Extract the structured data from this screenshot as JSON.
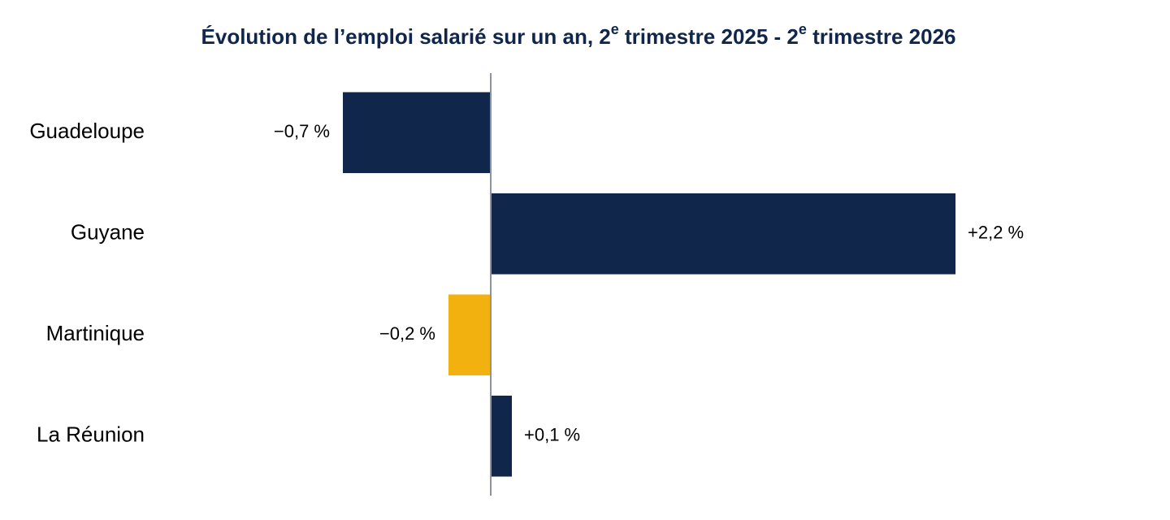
{
  "chart_data": {
    "type": "barh",
    "title": [
      "Évolution de l’emploi salarié sur un an, 2",
      "e",
      " trimestre 2025 - 2",
      "e",
      " trimestre 2026"
    ],
    "categories": [
      "Guadeloupe",
      "Guyane",
      "Martinique",
      "La Réunion"
    ],
    "values": [
      -0.7,
      2.2,
      -0.2,
      0.1
    ],
    "value_labels": [
      "−0,7 %",
      "+2,2 %",
      "−0,2 %",
      "+0,1 %"
    ],
    "colors": [
      "#10264a",
      "#10264a",
      "#f2b10f",
      "#10264a"
    ],
    "xlim": [
      -1.5,
      2.5
    ]
  }
}
